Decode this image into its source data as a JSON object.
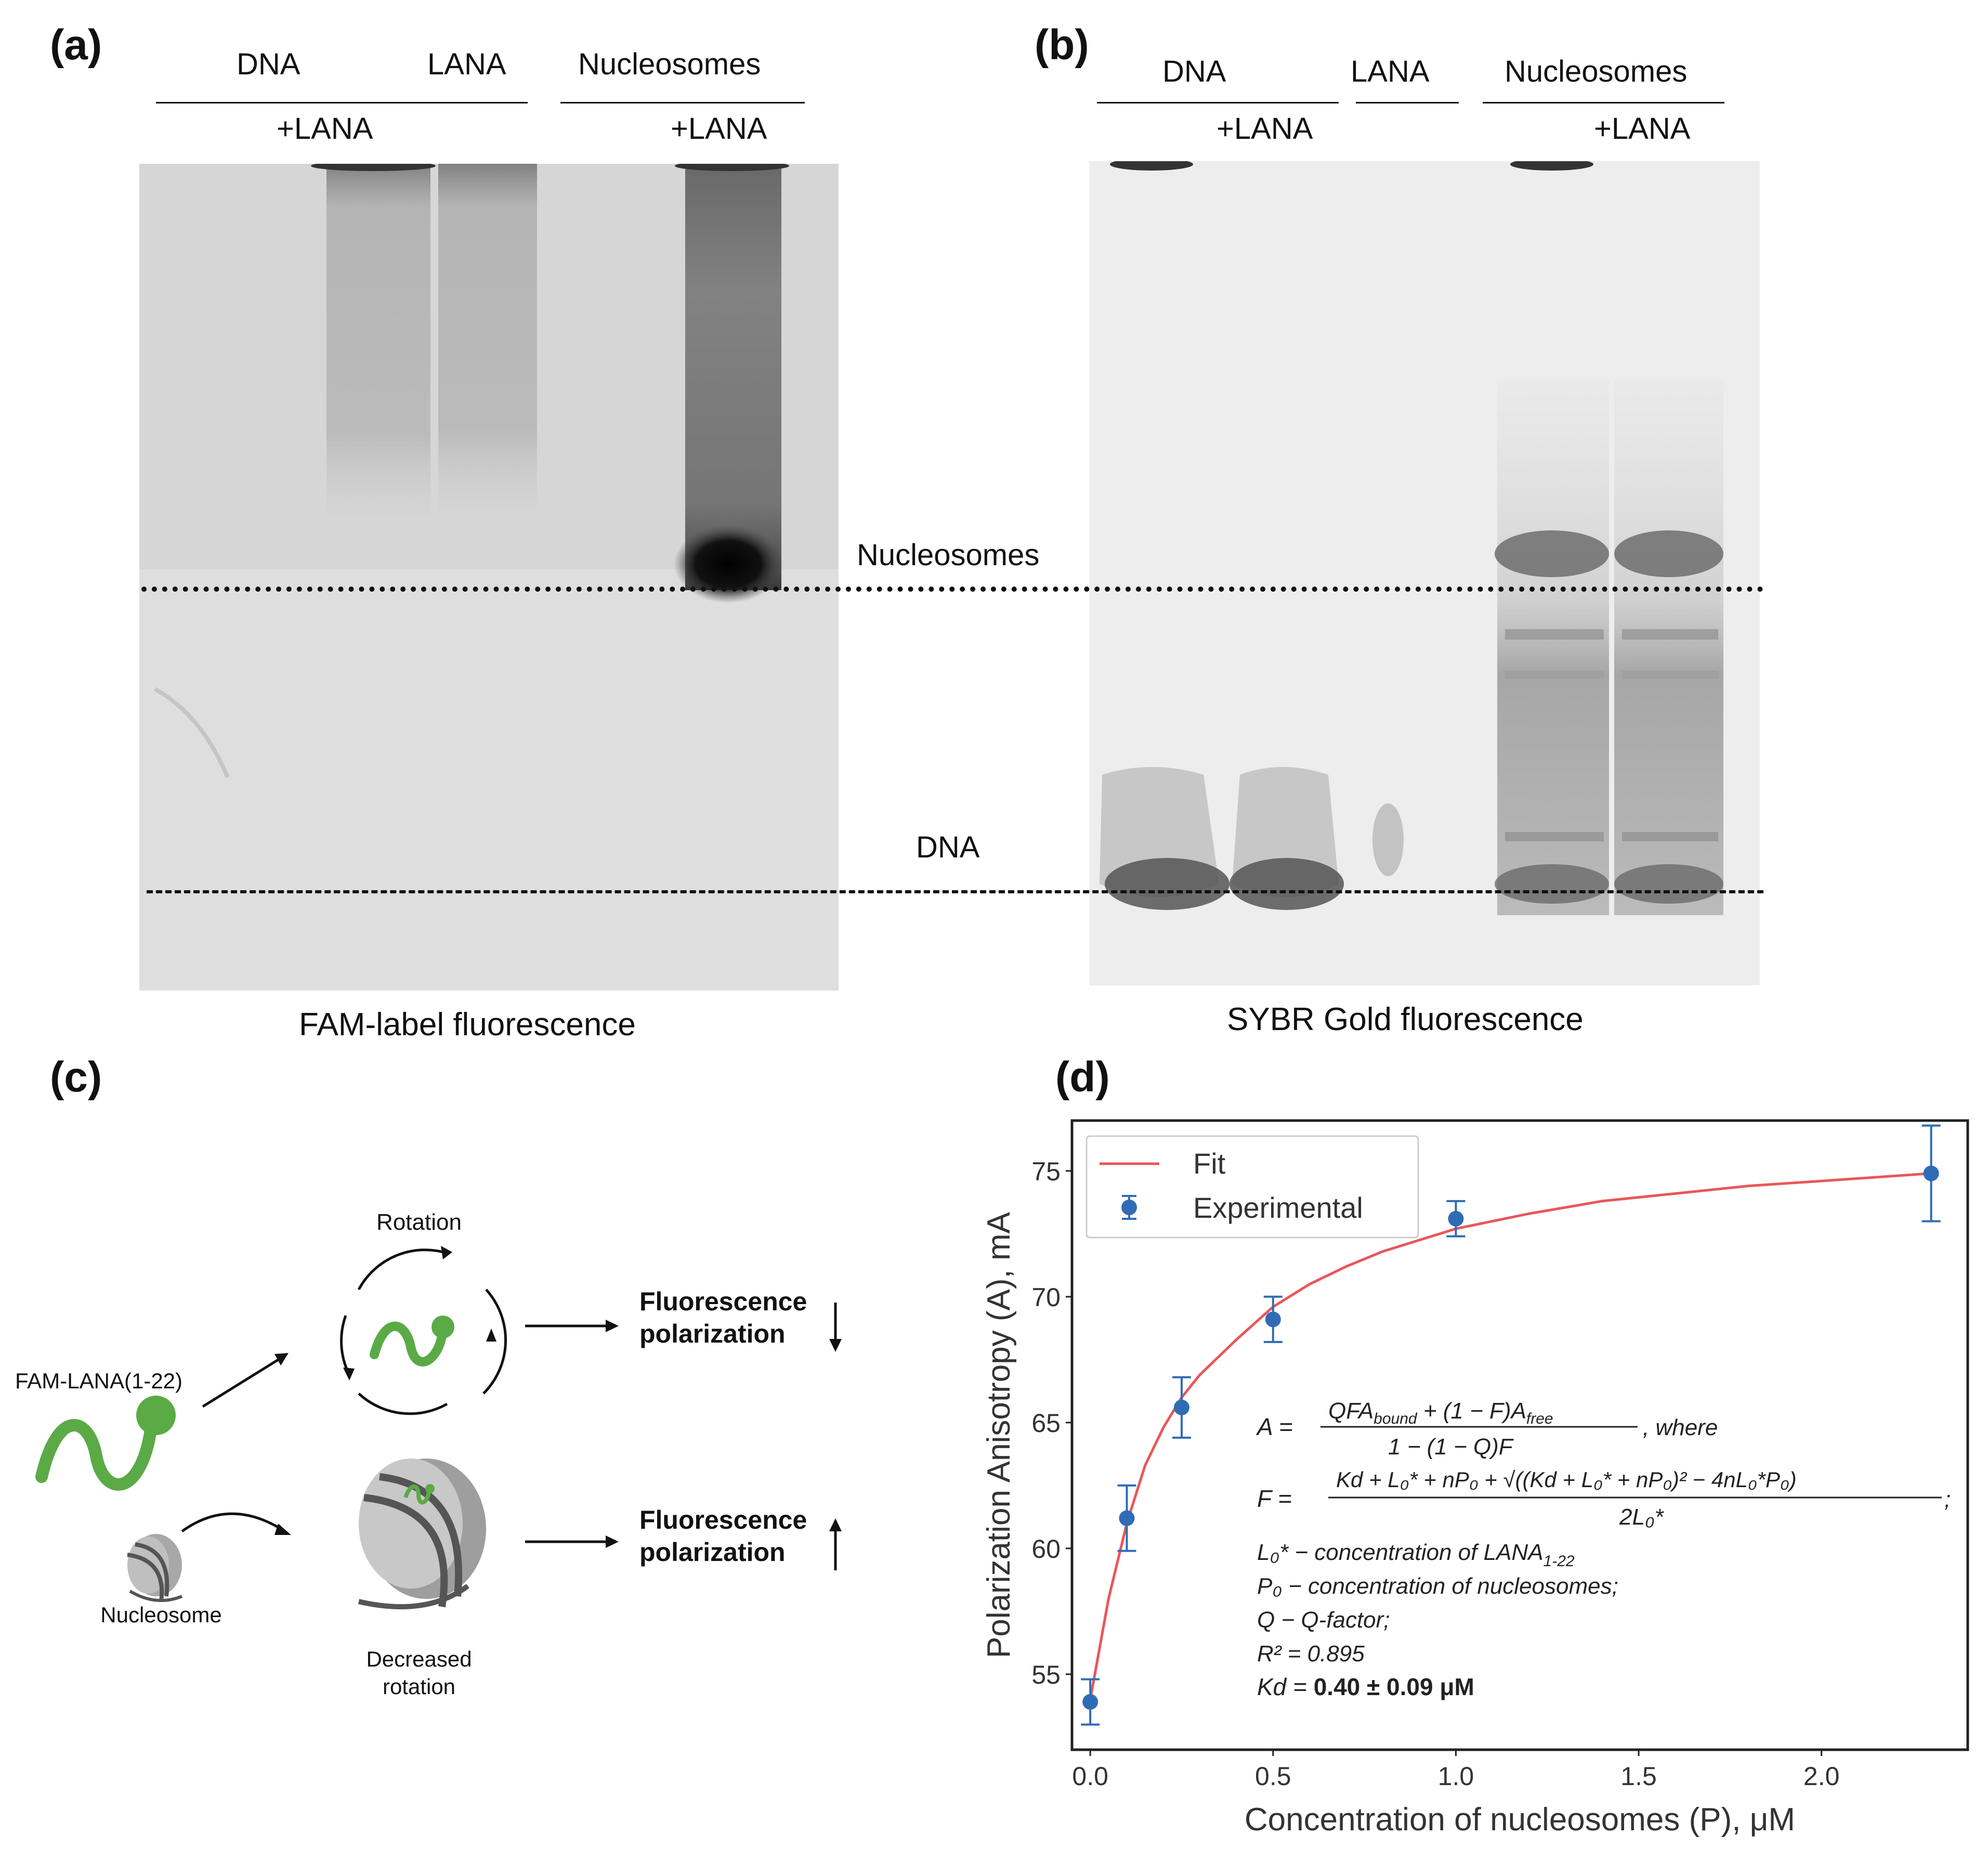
{
  "panel_a": {
    "label": "(a)",
    "headers": {
      "dna": "DNA",
      "lana": "LANA",
      "nucleosomes": "Nucleosomes"
    },
    "plus_dna": "+LANA",
    "plus_nuc": "+LANA",
    "caption": "FAM-label fluorescence"
  },
  "panel_b": {
    "label": "(b)",
    "headers": {
      "dna": "DNA",
      "lana": "LANA",
      "nucleosomes": "Nucleosomes"
    },
    "plus_dna": "+LANA",
    "plus_nuc": "+LANA",
    "caption": "SYBR Gold fluorescence"
  },
  "gel_markers": {
    "nucleosomes": "Nucleosomes",
    "dna": "DNA"
  },
  "panel_c": {
    "label": "(c)",
    "rotation": "Rotation",
    "fam_lana": "FAM-LANA(1-22)",
    "nucleosome": "Nucleosome",
    "fp_top_1": "Fluorescence",
    "fp_top_2": "polarization",
    "fp_bottom_1": "Fluorescence",
    "fp_bottom_2": "polarization",
    "decreased_1": "Decreased",
    "decreased_2": "rotation",
    "colors": {
      "green": "#5aaa46",
      "gray": "#9a9a9a"
    }
  },
  "panel_d": {
    "label": "(d)",
    "legend_fit": "Fit",
    "legend_exp": "Experimental",
    "eq_A_lhs": "A =",
    "eq_A_num": "QFA",
    "eq_A_num_sub": "bound",
    "eq_A_num_rest": " + (1 − F)A",
    "eq_A_num_sub2": "free",
    "eq_A_den": "1 − (1 − Q)F",
    "eq_A_where": ", where",
    "eq_F_lhs": "F =",
    "eq_F_num": "Kd + L₀* + nP₀ + √((Kd + L₀* + nP₀)² − 4nL₀*P₀)",
    "eq_F_den": "2L₀*",
    "eq_F_end": ";",
    "def_L": "L₀* − concentration of LANA",
    "def_L_sub": "1-22",
    "def_P": "P₀ − concentration of  nucleosomes;",
    "def_Q": "Q − Q-factor;",
    "r2": "R² = 0.895",
    "kd_prefix": "Kd  = ",
    "kd_value": "0.40 ± 0.09 μM",
    "fit_color": "#e8575a",
    "point_color": "#2f6cb5"
  },
  "chart_data": {
    "type": "scatter",
    "xlabel": "Concentration of nucleosomes (P), μM",
    "ylabel": "Polarization Anisotropy (A), mA",
    "xlim": [
      -0.05,
      2.4
    ],
    "ylim": [
      52,
      77
    ],
    "xticks": [
      "0.0",
      "0.5",
      "1.0",
      "1.5",
      "2.0"
    ],
    "yticks": [
      "55",
      "60",
      "65",
      "70",
      "75"
    ],
    "series": [
      {
        "name": "Experimental",
        "x": [
          0.0,
          0.1,
          0.25,
          0.5,
          1.0,
          2.3
        ],
        "y": [
          53.9,
          61.2,
          65.6,
          69.1,
          73.1,
          74.9
        ],
        "yerr": [
          0.9,
          1.3,
          1.2,
          0.9,
          0.7,
          1.9
        ]
      },
      {
        "name": "Fit",
        "x": [
          0.0,
          0.05,
          0.1,
          0.15,
          0.2,
          0.25,
          0.3,
          0.4,
          0.5,
          0.6,
          0.7,
          0.8,
          1.0,
          1.2,
          1.4,
          1.6,
          1.8,
          2.0,
          2.3
        ],
        "y": [
          54.0,
          58.0,
          61.0,
          63.3,
          64.8,
          66.0,
          66.9,
          68.3,
          69.6,
          70.5,
          71.2,
          71.8,
          72.7,
          73.3,
          73.8,
          74.1,
          74.4,
          74.6,
          74.9
        ]
      }
    ]
  }
}
